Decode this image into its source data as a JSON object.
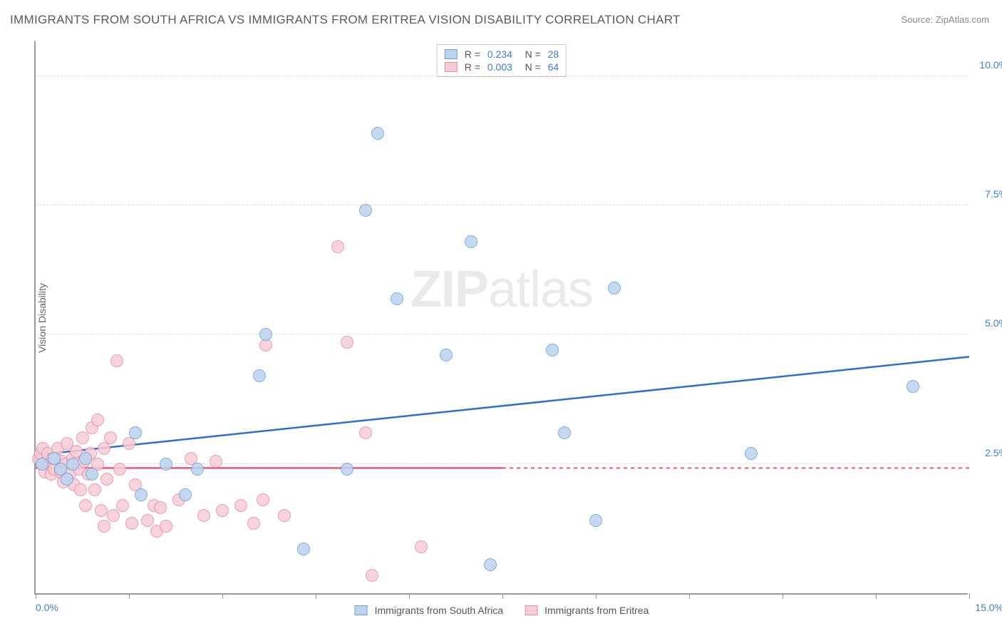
{
  "title": "IMMIGRANTS FROM SOUTH AFRICA VS IMMIGRANTS FROM ERITREA VISION DISABILITY CORRELATION CHART",
  "source_label": "Source: ZipAtlas.com",
  "watermark": {
    "bold": "ZIP",
    "rest": "atlas"
  },
  "chart": {
    "type": "scatter",
    "ylabel": "Vision Disability",
    "xlim": [
      0,
      15
    ],
    "ylim": [
      0,
      10.7
    ],
    "x_ticks": [
      0,
      1.5,
      3.0,
      4.5,
      6.0,
      7.5,
      9.0,
      10.5,
      12.0,
      13.5,
      15.0
    ],
    "x_tick_labels": {
      "first": "0.0%",
      "last": "15.0%"
    },
    "y_gridlines": [
      2.5,
      5.0,
      7.5,
      10.0
    ],
    "y_tick_labels": [
      "2.5%",
      "5.0%",
      "7.5%",
      "10.0%"
    ],
    "background_color": "#ffffff",
    "grid_color": "#dddddd",
    "marker_radius": 9,
    "marker_border_width": 1.5,
    "series": [
      {
        "name": "Immigrants from South Africa",
        "fill": "#bcd4f0",
        "stroke": "#6aa0de",
        "line_color": "#2f6fd0",
        "R": "0.234",
        "N": "28",
        "trend": {
          "x1": 0,
          "y1": 2.7,
          "x2": 15,
          "y2": 4.6,
          "dashed_from": 15
        },
        "points": [
          [
            0.1,
            2.5
          ],
          [
            0.3,
            2.6
          ],
          [
            0.4,
            2.4
          ],
          [
            0.5,
            2.2
          ],
          [
            0.6,
            2.5
          ],
          [
            0.8,
            2.6
          ],
          [
            0.9,
            2.3
          ],
          [
            1.6,
            3.1
          ],
          [
            1.7,
            1.9
          ],
          [
            2.1,
            2.5
          ],
          [
            2.4,
            1.9
          ],
          [
            2.6,
            2.4
          ],
          [
            3.6,
            4.2
          ],
          [
            3.7,
            5.0
          ],
          [
            4.3,
            0.85
          ],
          [
            5.0,
            2.4
          ],
          [
            5.3,
            7.4
          ],
          [
            5.5,
            8.9
          ],
          [
            5.8,
            5.7
          ],
          [
            6.6,
            4.6
          ],
          [
            7.0,
            6.8
          ],
          [
            7.3,
            0.55
          ],
          [
            8.3,
            4.7
          ],
          [
            8.5,
            3.1
          ],
          [
            9.0,
            1.4
          ],
          [
            11.5,
            2.7
          ],
          [
            14.1,
            4.0
          ],
          [
            9.3,
            5.9
          ]
        ]
      },
      {
        "name": "Immigrants from Eritrea",
        "fill": "#f6cdd6",
        "stroke": "#e98ba3",
        "line_color": "#e7567b",
        "R": "0.003",
        "N": "64",
        "trend": {
          "x1": 0,
          "y1": 2.45,
          "x2": 7.5,
          "y2": 2.45,
          "dashed_from": 7.5,
          "x3": 15
        },
        "points": [
          [
            0.05,
            2.6
          ],
          [
            0.08,
            2.7
          ],
          [
            0.1,
            2.5
          ],
          [
            0.12,
            2.8
          ],
          [
            0.15,
            2.35
          ],
          [
            0.18,
            2.55
          ],
          [
            0.2,
            2.7
          ],
          [
            0.22,
            2.5
          ],
          [
            0.25,
            2.3
          ],
          [
            0.28,
            2.6
          ],
          [
            0.3,
            2.4
          ],
          [
            0.35,
            2.8
          ],
          [
            0.4,
            2.35
          ],
          [
            0.42,
            2.55
          ],
          [
            0.45,
            2.15
          ],
          [
            0.48,
            2.5
          ],
          [
            0.5,
            2.9
          ],
          [
            0.55,
            2.3
          ],
          [
            0.6,
            2.6
          ],
          [
            0.62,
            2.1
          ],
          [
            0.65,
            2.75
          ],
          [
            0.7,
            2.4
          ],
          [
            0.72,
            2.0
          ],
          [
            0.75,
            3.0
          ],
          [
            0.78,
            2.55
          ],
          [
            0.8,
            1.7
          ],
          [
            0.85,
            2.3
          ],
          [
            0.88,
            2.7
          ],
          [
            0.9,
            3.2
          ],
          [
            0.95,
            2.0
          ],
          [
            1.0,
            2.5
          ],
          [
            1.0,
            3.35
          ],
          [
            1.05,
            1.6
          ],
          [
            1.1,
            2.8
          ],
          [
            1.1,
            1.3
          ],
          [
            1.15,
            2.2
          ],
          [
            1.2,
            3.0
          ],
          [
            1.25,
            1.5
          ],
          [
            1.3,
            4.5
          ],
          [
            1.35,
            2.4
          ],
          [
            1.4,
            1.7
          ],
          [
            1.5,
            2.9
          ],
          [
            1.55,
            1.35
          ],
          [
            1.6,
            2.1
          ],
          [
            1.8,
            1.4
          ],
          [
            1.9,
            1.7
          ],
          [
            1.95,
            1.2
          ],
          [
            2.0,
            1.65
          ],
          [
            2.1,
            1.3
          ],
          [
            2.3,
            1.8
          ],
          [
            2.5,
            2.6
          ],
          [
            2.7,
            1.5
          ],
          [
            2.9,
            2.55
          ],
          [
            3.0,
            1.6
          ],
          [
            3.3,
            1.7
          ],
          [
            3.5,
            1.35
          ],
          [
            3.65,
            1.8
          ],
          [
            3.7,
            4.8
          ],
          [
            4.0,
            1.5
          ],
          [
            4.85,
            6.7
          ],
          [
            5.0,
            4.85
          ],
          [
            5.3,
            3.1
          ],
          [
            5.4,
            0.35
          ],
          [
            6.2,
            0.9
          ]
        ]
      }
    ]
  }
}
